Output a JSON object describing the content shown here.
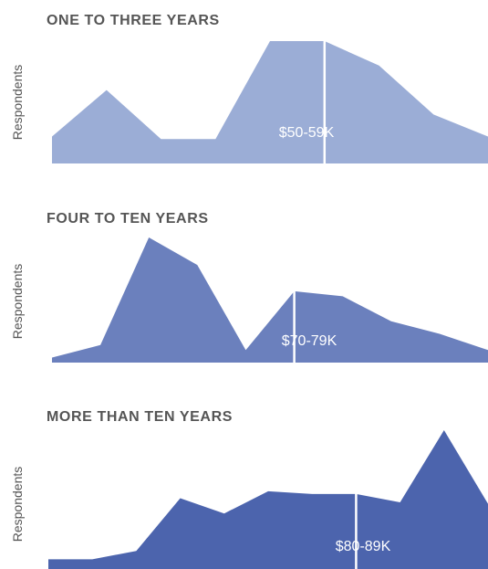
{
  "chart_data": [
    {
      "type": "area",
      "title": "ONE TO THREE YEARS",
      "ylabel": "Respondents",
      "color": "#9badd6",
      "values": [
        2.2,
        6.0,
        2.0,
        2.0,
        10.0,
        10.0,
        8.0,
        4.0,
        2.2
      ],
      "median_label": "$50-59K",
      "median_position": 5.0
    },
    {
      "type": "area",
      "title": "FOUR TO TEN YEARS",
      "ylabel": "Respondents",
      "color": "#6b80bd",
      "values": [
        0.4,
        1.4,
        10.0,
        7.8,
        1.0,
        5.7,
        5.3,
        3.3,
        2.3,
        1.0
      ],
      "median_label": "$70-79K",
      "median_position": 5.0
    },
    {
      "type": "area",
      "title": "MORE THAN TEN YEARS",
      "ylabel": "Respondents",
      "color": "#4c64ad",
      "values": [
        0.7,
        0.7,
        1.3,
        5.1,
        4.0,
        5.6,
        5.4,
        5.4,
        4.8,
        10.0,
        4.7
      ],
      "median_label": "$80-89K",
      "median_position": 7.0
    }
  ]
}
